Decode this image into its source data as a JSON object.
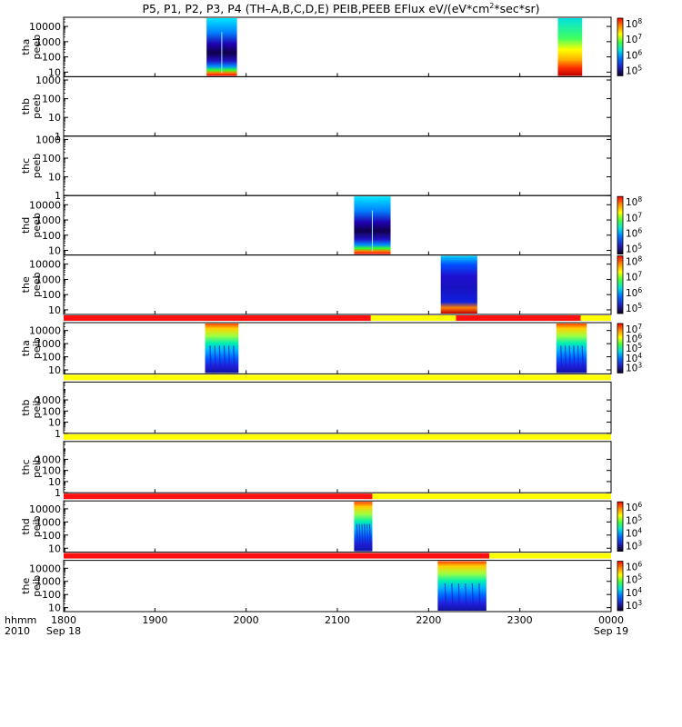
{
  "title": {
    "main": "P5, P1, P2, P3, P4 (TH–A,B,C,D,E) PEIB,PEEB EFlux eV/(eV*cm",
    "sup1": "2",
    "rest": "*sec*sr)"
  },
  "axis_corner": {
    "line1": "hhmm",
    "line2": "2010"
  },
  "colors": {
    "bar_red": "#ff1010",
    "bar_yellow": "#ffff00",
    "axis": "#000000"
  },
  "chart_data": {
    "type": "heatmap",
    "x_unit": "hhmm",
    "xlim": [
      "1800",
      "0000"
    ],
    "x_ticks": [
      {
        "label": "1800",
        "sub": "Sep 18"
      },
      {
        "label": "1900",
        "sub": ""
      },
      {
        "label": "2000",
        "sub": ""
      },
      {
        "label": "2100",
        "sub": ""
      },
      {
        "label": "2200",
        "sub": ""
      },
      {
        "label": "2300",
        "sub": ""
      },
      {
        "label": "0000",
        "sub": "Sep 19"
      }
    ],
    "panels": [
      {
        "probe": "tha",
        "product": "peeb",
        "ylog": [
          5,
          40000
        ],
        "y_ticks": [
          "10",
          "100",
          "1000",
          "10000"
        ],
        "colorbar": {
          "ticks": [
            "10^5",
            "10^6",
            "10^7",
            "10^8"
          ]
        },
        "status_bar": null,
        "blocks": [
          {
            "start": "1934",
            "end": "1954",
            "style": "peeb_deep"
          },
          {
            "start": "2325",
            "end": "2341",
            "style": "peeb_warm"
          }
        ]
      },
      {
        "probe": "thb",
        "product": "peeb",
        "ylog": [
          1,
          1500
        ],
        "y_ticks": [
          "1",
          "10",
          "100",
          "1000"
        ],
        "colorbar": null,
        "status_bar": null,
        "blocks": []
      },
      {
        "probe": "thc",
        "product": "peeb",
        "ylog": [
          1,
          1500
        ],
        "y_ticks": [
          "1",
          "10",
          "100",
          "1000"
        ],
        "colorbar": null,
        "status_bar": null,
        "blocks": []
      },
      {
        "probe": "thd",
        "product": "peeb",
        "ylog": [
          5,
          40000
        ],
        "y_ticks": [
          "10",
          "100",
          "1000",
          "10000"
        ],
        "colorbar": {
          "ticks": [
            "10^5",
            "10^6",
            "10^7",
            "10^8"
          ]
        },
        "status_bar": null,
        "blocks": [
          {
            "start": "2111",
            "end": "2135",
            "style": "peeb_deep"
          }
        ]
      },
      {
        "probe": "the",
        "product": "peeb",
        "ylog": [
          5,
          40000
        ],
        "y_ticks": [
          "10",
          "100",
          "1000",
          "10000"
        ],
        "colorbar": {
          "ticks": [
            "10^5",
            "10^6",
            "10^7",
            "10^8"
          ]
        },
        "status_bar": null,
        "blocks": [
          {
            "start": "2208",
            "end": "2232",
            "style": "peeb_blue"
          }
        ]
      },
      {
        "probe": "tha",
        "product": "peib",
        "ylog": [
          5,
          40000
        ],
        "y_ticks": [
          "10",
          "100",
          "1000",
          "10000"
        ],
        "colorbar": {
          "ticks": [
            "10^3",
            "10^4",
            "10^5",
            "10^6",
            "10^7"
          ]
        },
        "status_bar": [
          {
            "start": "1800",
            "end": "2122",
            "color": "red"
          },
          {
            "start": "2122",
            "end": "2218",
            "color": "yellow"
          },
          {
            "start": "2218",
            "end": "2340",
            "color": "red"
          },
          {
            "start": "2340",
            "end": "0000",
            "color": "yellow"
          }
        ],
        "blocks": [
          {
            "start": "1933",
            "end": "1955",
            "style": "peib"
          },
          {
            "start": "2324",
            "end": "2344",
            "style": "peib"
          }
        ]
      },
      {
        "probe": "thb",
        "product": "peib",
        "ylog": [
          1,
          40000
        ],
        "y_ticks": [
          "1",
          "10",
          "100",
          "1000"
        ],
        "colorbar": null,
        "status_bar": [
          {
            "start": "1800",
            "end": "0000",
            "color": "yellow"
          }
        ],
        "blocks": []
      },
      {
        "probe": "thc",
        "product": "peib",
        "ylog": [
          1,
          40000
        ],
        "y_ticks": [
          "1",
          "10",
          "100",
          "1000"
        ],
        "colorbar": null,
        "status_bar": [
          {
            "start": "1800",
            "end": "0000",
            "color": "yellow"
          }
        ],
        "blocks": []
      },
      {
        "probe": "thd",
        "product": "peib",
        "ylog": [
          5,
          40000
        ],
        "y_ticks": [
          "10",
          "100",
          "1000",
          "10000"
        ],
        "colorbar": {
          "ticks": [
            "10^3",
            "10^4",
            "10^5",
            "10^6"
          ]
        },
        "status_bar": [
          {
            "start": "1800",
            "end": "2123",
            "color": "red"
          },
          {
            "start": "2123",
            "end": "0000",
            "color": "yellow"
          }
        ],
        "blocks": [
          {
            "start": "2111",
            "end": "2123",
            "style": "peib"
          }
        ]
      },
      {
        "probe": "the",
        "product": "peib",
        "ylog": [
          5,
          40000
        ],
        "y_ticks": [
          "10",
          "100",
          "1000",
          "10000"
        ],
        "colorbar": {
          "ticks": [
            "10^3",
            "10^4",
            "10^5",
            "10^6"
          ]
        },
        "status_bar": [
          {
            "start": "1800",
            "end": "2240",
            "color": "red"
          },
          {
            "start": "2240",
            "end": "0000",
            "color": "yellow"
          }
        ],
        "blocks": [
          {
            "start": "2206",
            "end": "2238",
            "style": "peib"
          }
        ]
      }
    ]
  }
}
